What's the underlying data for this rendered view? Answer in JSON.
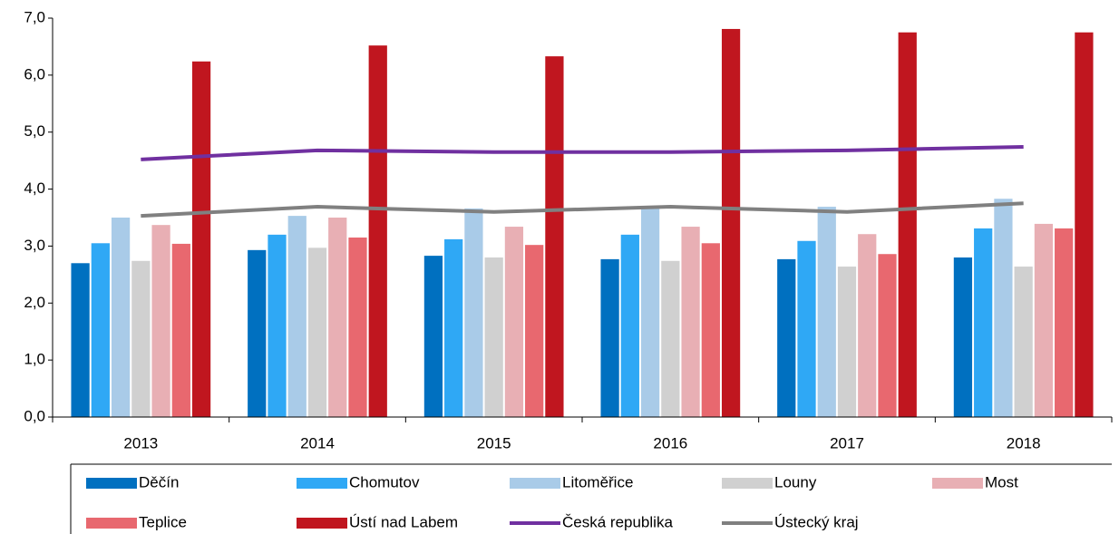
{
  "chart_data": {
    "type": "bar-line",
    "categories": [
      "2013",
      "2014",
      "2015",
      "2016",
      "2017",
      "2018"
    ],
    "series": [
      {
        "name": "Děčín",
        "color": "#0070c0",
        "type": "bar",
        "values": [
          2.7,
          2.93,
          2.83,
          2.77,
          2.77,
          2.8
        ]
      },
      {
        "name": "Chomutov",
        "color": "#2fa8f5",
        "type": "bar",
        "values": [
          3.05,
          3.2,
          3.12,
          3.2,
          3.09,
          3.31
        ]
      },
      {
        "name": "Litoměřice",
        "color": "#a9cbe8",
        "type": "bar",
        "values": [
          3.5,
          3.53,
          3.66,
          3.66,
          3.69,
          3.83
        ]
      },
      {
        "name": "Louny",
        "color": "#d0d0d0",
        "type": "bar",
        "values": [
          2.74,
          2.97,
          2.8,
          2.74,
          2.64,
          2.64
        ]
      },
      {
        "name": "Most",
        "color": "#e8afb4",
        "type": "bar",
        "values": [
          3.37,
          3.5,
          3.34,
          3.34,
          3.21,
          3.39
        ]
      },
      {
        "name": "Teplice",
        "color": "#e8686f",
        "type": "bar",
        "values": [
          3.04,
          3.15,
          3.02,
          3.05,
          2.86,
          3.31
        ]
      },
      {
        "name": "Ústí nad Labem",
        "color": "#c0161f",
        "type": "bar",
        "values": [
          6.24,
          6.52,
          6.33,
          6.81,
          6.75,
          6.75
        ]
      },
      {
        "name": "Česká republika",
        "color": "#7030a0",
        "type": "line",
        "values": [
          4.52,
          4.68,
          4.65,
          4.65,
          4.68,
          4.74
        ]
      },
      {
        "name": "Ústecký kraj",
        "color": "#808080",
        "type": "line",
        "values": [
          3.53,
          3.69,
          3.6,
          3.69,
          3.6,
          3.75
        ]
      }
    ],
    "ylim": [
      0,
      7
    ],
    "yticks": [
      {
        "value": 0,
        "label": "0,0"
      },
      {
        "value": 1,
        "label": "1,0"
      },
      {
        "value": 2,
        "label": "2,0"
      },
      {
        "value": 3,
        "label": "3,0"
      },
      {
        "value": 4,
        "label": "4,0"
      },
      {
        "value": 5,
        "label": "5,0"
      },
      {
        "value": 6,
        "label": "6,0"
      },
      {
        "value": 7,
        "label": "7,0"
      }
    ],
    "legend": "bottom"
  }
}
